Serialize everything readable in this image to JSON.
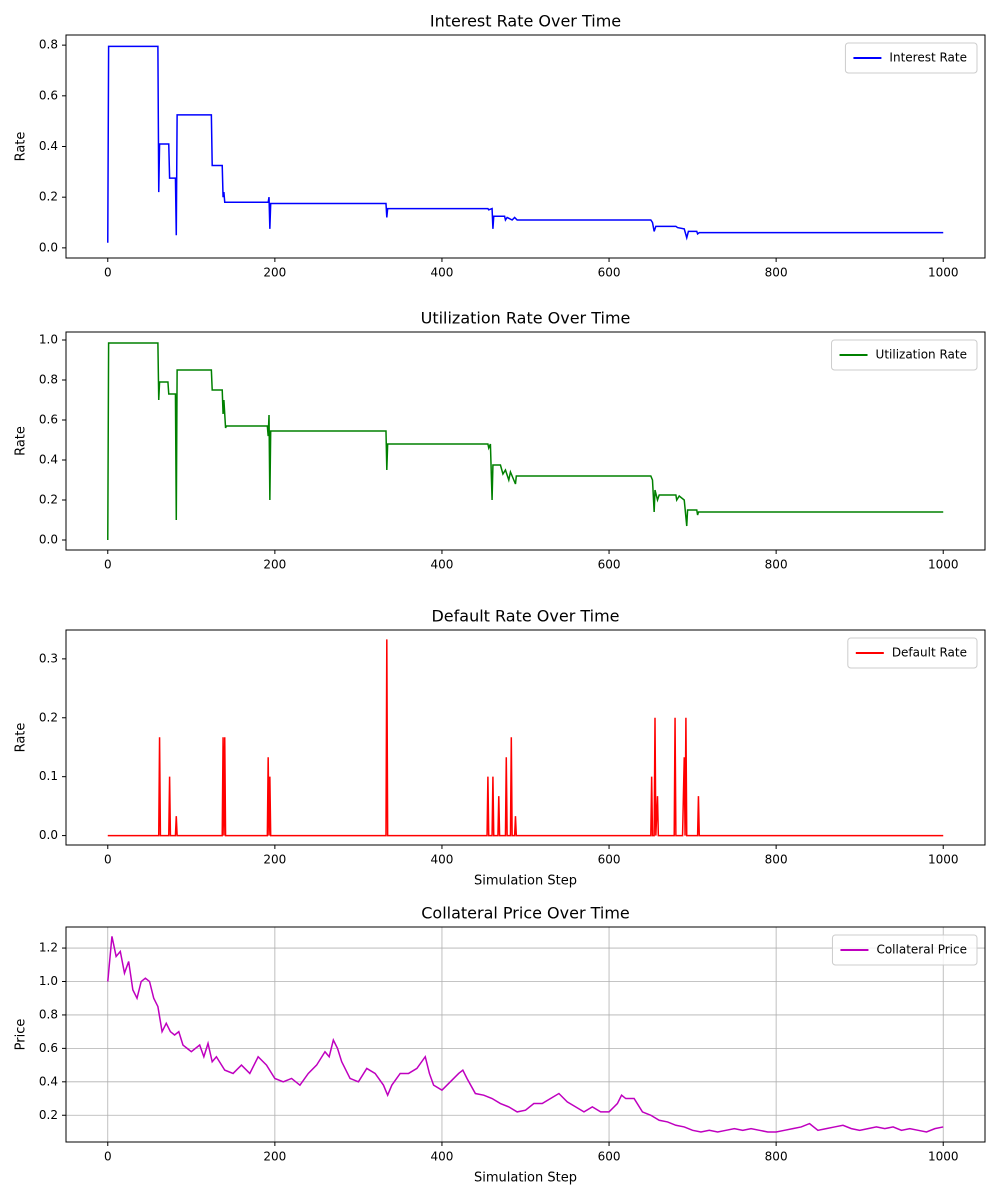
{
  "chart_data": [
    {
      "type": "line",
      "title": "Interest Rate Over Time",
      "ylabel": "Rate",
      "x": [
        0,
        1,
        60,
        61,
        62,
        73,
        74,
        81,
        82,
        83,
        124,
        125,
        137,
        138,
        139,
        140,
        192,
        193,
        194,
        195,
        333,
        334,
        335,
        455,
        456,
        460,
        461,
        462,
        475,
        476,
        478,
        484,
        487,
        490,
        650,
        652,
        654,
        656,
        680,
        682,
        690,
        693,
        695,
        705,
        706,
        708,
        1000
      ],
      "series": [
        {
          "name": "Interest Rate",
          "color": "#0000ff",
          "values": [
            0.02,
            0.795,
            0.795,
            0.22,
            0.41,
            0.41,
            0.275,
            0.275,
            0.05,
            0.525,
            0.525,
            0.325,
            0.325,
            0.2,
            0.22,
            0.18,
            0.18,
            0.2,
            0.075,
            0.175,
            0.175,
            0.12,
            0.155,
            0.155,
            0.15,
            0.155,
            0.075,
            0.125,
            0.125,
            0.11,
            0.12,
            0.11,
            0.12,
            0.11,
            0.11,
            0.1,
            0.065,
            0.085,
            0.085,
            0.08,
            0.075,
            0.04,
            0.065,
            0.065,
            0.055,
            0.06,
            0.06
          ]
        }
      ],
      "xlim": [
        -50,
        1050
      ],
      "ylim": [
        -0.04,
        0.84
      ],
      "xticks": [
        0,
        200,
        400,
        600,
        800,
        1000
      ],
      "yticks": [
        {
          "value": 0,
          "label": "0.0"
        },
        0.2,
        0.4,
        0.6,
        0.8
      ],
      "legend": "upper right",
      "grid": false
    },
    {
      "type": "line",
      "title": "Utilization Rate Over Time",
      "ylabel": "Rate",
      "x": [
        0,
        1,
        60,
        61,
        62,
        72,
        73,
        81,
        82,
        83,
        124,
        125,
        137,
        138,
        139,
        141,
        142,
        191,
        192,
        193,
        194,
        195,
        333,
        334,
        335,
        455,
        456,
        458,
        460,
        461,
        470,
        473,
        476,
        480,
        482,
        486,
        488,
        489,
        650,
        652,
        654,
        655,
        658,
        660,
        680,
        681,
        684,
        690,
        693,
        694,
        705,
        706,
        707,
        1000
      ],
      "series": [
        {
          "name": "Utilization Rate",
          "color": "#008000",
          "values": [
            0,
            0.985,
            0.985,
            0.7,
            0.79,
            0.79,
            0.73,
            0.73,
            0.1,
            0.85,
            0.85,
            0.75,
            0.75,
            0.63,
            0.7,
            0.56,
            0.57,
            0.57,
            0.52,
            0.625,
            0.2,
            0.545,
            0.545,
            0.35,
            0.48,
            0.48,
            0.46,
            0.48,
            0.2,
            0.375,
            0.375,
            0.33,
            0.35,
            0.3,
            0.34,
            0.3,
            0.28,
            0.32,
            0.32,
            0.3,
            0.14,
            0.25,
            0.2,
            0.225,
            0.225,
            0.2,
            0.22,
            0.2,
            0.07,
            0.15,
            0.15,
            0.125,
            0.14,
            0.14
          ]
        }
      ],
      "xlim": [
        -50,
        1050
      ],
      "ylim": [
        -0.05,
        1.04
      ],
      "xticks": [
        0,
        200,
        400,
        600,
        800,
        1000
      ],
      "yticks": [
        {
          "value": 0,
          "label": "0.0"
        },
        0.2,
        0.4,
        0.6,
        0.8,
        {
          "value": 1,
          "label": "1.0"
        }
      ],
      "legend": "upper right",
      "grid": false
    },
    {
      "type": "line",
      "title": "Default Rate Over Time",
      "ylabel": "Rate",
      "xlabel": "Simulation Step",
      "x": [
        0,
        61,
        62,
        63,
        73,
        74,
        75,
        81,
        82,
        83,
        137,
        138,
        139,
        140,
        141,
        191,
        192,
        193,
        194,
        195,
        333,
        334,
        335,
        454,
        455,
        456,
        460,
        461,
        462,
        467,
        468,
        469,
        476,
        477,
        478,
        482,
        483,
        484,
        487,
        488,
        489,
        650,
        651,
        652,
        654,
        655,
        656,
        658,
        659,
        678,
        679,
        680,
        688,
        689,
        690,
        691,
        692,
        693,
        706,
        707,
        708,
        1000
      ],
      "series": [
        {
          "name": "Default Rate",
          "color": "#ff0000",
          "values": [
            0,
            0,
            0.167,
            0,
            0,
            0.1,
            0,
            0,
            0.033,
            0,
            0,
            0.167,
            0,
            0.167,
            0,
            0,
            0.133,
            0,
            0.1,
            0,
            0,
            0.333,
            0,
            0,
            0.1,
            0,
            0,
            0.1,
            0,
            0,
            0.067,
            0,
            0,
            0.133,
            0,
            0,
            0.167,
            0,
            0,
            0.033,
            0,
            0,
            0.1,
            0,
            0,
            0.2,
            0,
            0.067,
            0,
            0,
            0.2,
            0,
            0,
            0.067,
            0.133,
            0,
            0.2,
            0,
            0,
            0.067,
            0,
            0
          ]
        }
      ],
      "xlim": [
        -50,
        1050
      ],
      "ylim": [
        -0.016,
        0.349
      ],
      "xticks": [
        0,
        200,
        400,
        600,
        800,
        1000
      ],
      "yticks": [
        {
          "value": 0,
          "label": "0.0"
        },
        0.1,
        0.2,
        0.3
      ],
      "legend": "upper right",
      "grid": false
    },
    {
      "type": "line",
      "title": "Collateral Price Over Time",
      "ylabel": "Price",
      "xlabel": "Simulation Step",
      "x": [
        0,
        5,
        10,
        15,
        20,
        25,
        30,
        35,
        40,
        45,
        50,
        55,
        60,
        65,
        70,
        75,
        80,
        85,
        90,
        95,
        100,
        110,
        115,
        120,
        125,
        130,
        140,
        150,
        160,
        170,
        180,
        190,
        200,
        210,
        220,
        230,
        240,
        250,
        260,
        265,
        270,
        275,
        280,
        290,
        300,
        310,
        320,
        330,
        335,
        340,
        350,
        360,
        370,
        380,
        385,
        390,
        400,
        410,
        420,
        425,
        430,
        440,
        450,
        460,
        470,
        480,
        490,
        500,
        510,
        520,
        530,
        540,
        550,
        560,
        570,
        580,
        590,
        600,
        610,
        615,
        620,
        630,
        640,
        650,
        660,
        670,
        680,
        690,
        700,
        710,
        720,
        730,
        740,
        750,
        760,
        770,
        780,
        790,
        800,
        810,
        820,
        830,
        840,
        850,
        860,
        870,
        880,
        890,
        900,
        910,
        920,
        930,
        940,
        950,
        960,
        970,
        980,
        990,
        1000
      ],
      "series": [
        {
          "name": "Collateral Price",
          "color": "#bf00bf",
          "values": [
            1.0,
            1.27,
            1.15,
            1.18,
            1.05,
            1.12,
            0.95,
            0.9,
            1.0,
            1.02,
            1.0,
            0.9,
            0.85,
            0.7,
            0.75,
            0.7,
            0.68,
            0.7,
            0.62,
            0.6,
            0.58,
            0.62,
            0.55,
            0.63,
            0.52,
            0.55,
            0.47,
            0.45,
            0.5,
            0.45,
            0.55,
            0.5,
            0.42,
            0.4,
            0.42,
            0.38,
            0.45,
            0.5,
            0.58,
            0.55,
            0.65,
            0.6,
            0.52,
            0.42,
            0.4,
            0.48,
            0.45,
            0.38,
            0.32,
            0.38,
            0.45,
            0.45,
            0.48,
            0.55,
            0.45,
            0.38,
            0.35,
            0.4,
            0.45,
            0.47,
            0.42,
            0.33,
            0.32,
            0.3,
            0.27,
            0.25,
            0.22,
            0.23,
            0.27,
            0.27,
            0.3,
            0.33,
            0.28,
            0.25,
            0.22,
            0.25,
            0.22,
            0.22,
            0.27,
            0.32,
            0.3,
            0.3,
            0.22,
            0.2,
            0.17,
            0.16,
            0.14,
            0.13,
            0.11,
            0.1,
            0.11,
            0.1,
            0.11,
            0.12,
            0.11,
            0.12,
            0.11,
            0.1,
            0.1,
            0.11,
            0.12,
            0.13,
            0.15,
            0.11,
            0.12,
            0.13,
            0.14,
            0.12,
            0.11,
            0.12,
            0.13,
            0.12,
            0.13,
            0.11,
            0.12,
            0.11,
            0.1,
            0.12,
            0.13
          ]
        }
      ],
      "xlim": [
        -50,
        1050
      ],
      "ylim": [
        0.04,
        1.326
      ],
      "xticks": [
        0,
        200,
        400,
        600,
        800,
        1000
      ],
      "yticks": [
        0.2,
        0.4,
        0.6,
        0.8,
        {
          "value": 1,
          "label": "1.0"
        },
        1.2
      ],
      "legend": "upper right",
      "grid": true
    }
  ]
}
